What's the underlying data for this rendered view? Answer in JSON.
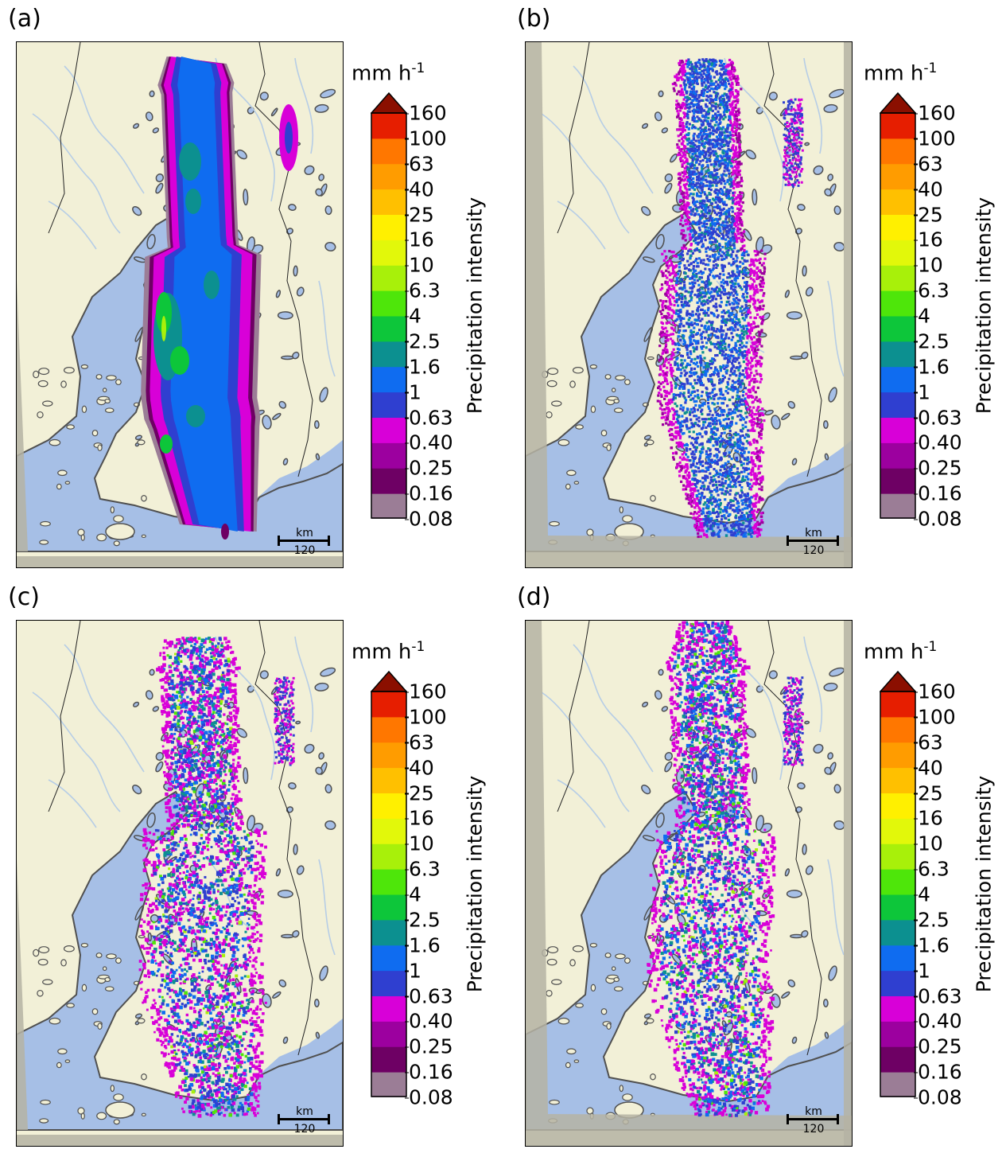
{
  "panels": [
    {
      "id": "a",
      "label": "(a)",
      "style": "smooth"
    },
    {
      "id": "b",
      "label": "(b)",
      "style": "fine"
    },
    {
      "id": "c",
      "label": "(c)",
      "style": "cells"
    },
    {
      "id": "d",
      "label": "(d)",
      "style": "cells2"
    }
  ],
  "colorbar": {
    "unit_main": "mm h",
    "unit_exp": "-1",
    "label": "Precipitation intensity",
    "ticks": [
      "0.08",
      "0.16",
      "0.25",
      "0.40",
      "0.63",
      "1",
      "1.6",
      "2.5",
      "4",
      "6.3",
      "10",
      "16",
      "25",
      "40",
      "63",
      "100",
      "160"
    ],
    "colors": [
      "#9b7d96",
      "#6e0064",
      "#9c009f",
      "#d800d8",
      "#2f3fd0",
      "#0f6cf0",
      "#0c9090",
      "#0dc63a",
      "#4ee60a",
      "#a8f00a",
      "#e2f80a",
      "#fff000",
      "#ffc000",
      "#ff9c00",
      "#ff7700",
      "#e61e00"
    ],
    "extend_color": "#8b0f00"
  },
  "scalebar": {
    "unit": "km",
    "value": "120"
  },
  "map_colors": {
    "land": "#f2f0d7",
    "sea": "#a6bfe6",
    "outside": "#b5b3a3",
    "coast": "#505050",
    "river": "#b6cde6",
    "border": "#222222"
  }
}
